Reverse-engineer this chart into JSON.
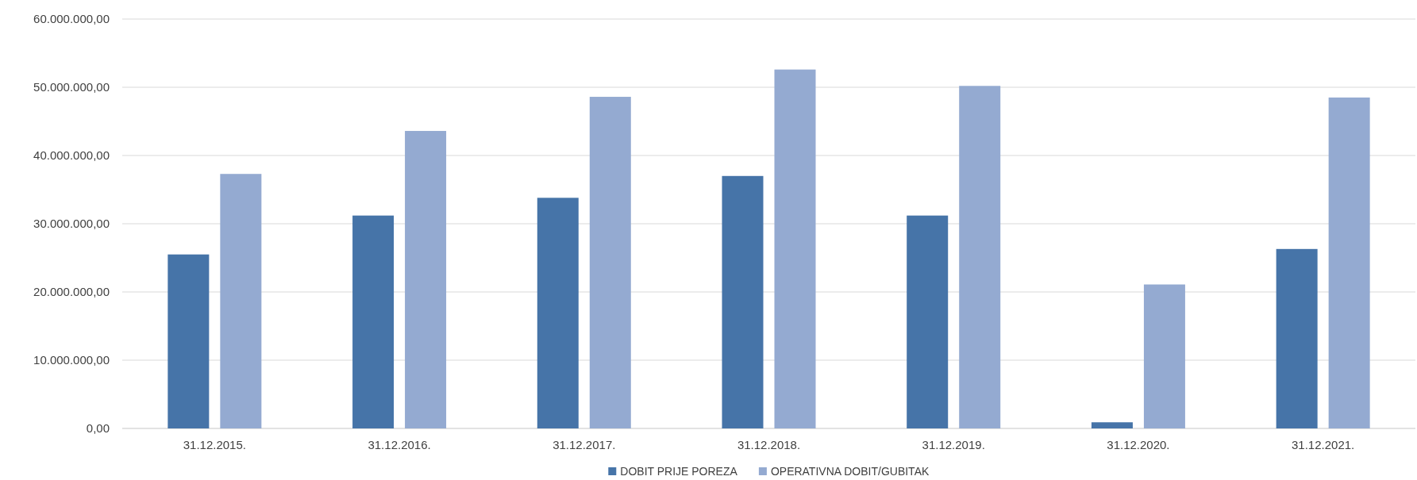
{
  "chart_data": {
    "type": "bar",
    "categories": [
      "31.12.2015.",
      "31.12.2016.",
      "31.12.2017.",
      "31.12.2018.",
      "31.12.2019.",
      "31.12.2020.",
      "31.12.2021."
    ],
    "series": [
      {
        "name": "DOBIT PRIJE POREZA",
        "color": "#4674a8",
        "values": [
          25500000,
          31200000,
          33800000,
          37000000,
          31200000,
          900000,
          26300000
        ]
      },
      {
        "name": "OPERATIVNA DOBIT/GUBITAK",
        "color": "#94aad1",
        "values": [
          37300000,
          43600000,
          48600000,
          52600000,
          50200000,
          21100000,
          48500000
        ]
      }
    ],
    "ylim": [
      0,
      60000000
    ],
    "yticks": [
      {
        "value": 0,
        "label": "0,00"
      },
      {
        "value": 10000000,
        "label": "10.000.000,00"
      },
      {
        "value": 20000000,
        "label": "20.000.000,00"
      },
      {
        "value": 30000000,
        "label": "30.000.000,00"
      },
      {
        "value": 40000000,
        "label": "40.000.000,00"
      },
      {
        "value": 50000000,
        "label": "50.000.000,00"
      },
      {
        "value": 60000000,
        "label": "60.000.000,00"
      }
    ],
    "grid": "y",
    "legend": "bottom"
  }
}
